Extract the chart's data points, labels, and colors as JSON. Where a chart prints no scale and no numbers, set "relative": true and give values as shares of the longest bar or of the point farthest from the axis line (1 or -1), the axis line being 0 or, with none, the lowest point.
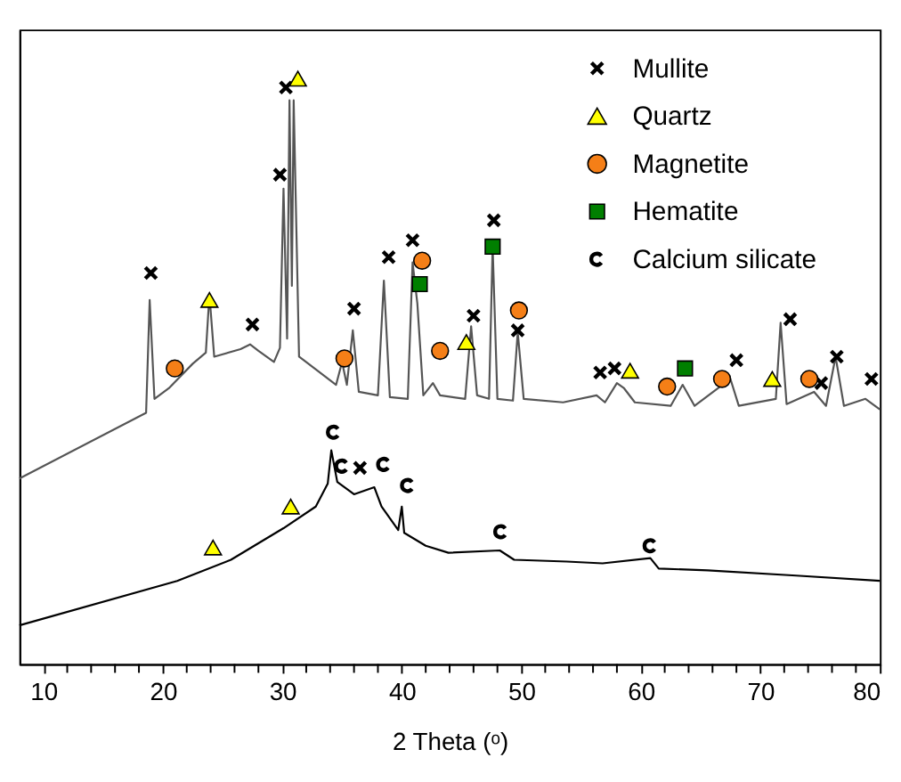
{
  "chart_data": {
    "type": "line",
    "relative": true,
    "xlabel": "2 Theta (ᵒ)",
    "xlim": [
      8,
      80
    ],
    "xticks": [
      10,
      {
        "value": 12,
        "label": null
      },
      {
        "value": 14,
        "label": null
      },
      {
        "value": 16,
        "label": null
      },
      {
        "value": 18,
        "label": null
      },
      20,
      {
        "value": 22,
        "label": null
      },
      {
        "value": 24,
        "label": null
      },
      {
        "value": 26,
        "label": null
      },
      {
        "value": 28,
        "label": null
      },
      30,
      {
        "value": 32,
        "label": null
      },
      {
        "value": 34,
        "label": null
      },
      {
        "value": 36,
        "label": null
      },
      {
        "value": 38,
        "label": null
      },
      40,
      {
        "value": 42,
        "label": null
      },
      {
        "value": 44,
        "label": null
      },
      {
        "value": 46,
        "label": null
      },
      {
        "value": 48,
        "label": null
      },
      50,
      {
        "value": 52,
        "label": null
      },
      {
        "value": 54,
        "label": null
      },
      {
        "value": 56,
        "label": null
      },
      {
        "value": 58,
        "label": null
      },
      60,
      {
        "value": 62,
        "label": null
      },
      {
        "value": 64,
        "label": null
      },
      {
        "value": 66,
        "label": null
      },
      {
        "value": 68,
        "label": null
      },
      70,
      {
        "value": 72,
        "label": null
      },
      {
        "value": 74,
        "label": null
      },
      {
        "value": 76,
        "label": null
      },
      {
        "value": 78,
        "label": null
      },
      80
    ],
    "grid": false,
    "legend": "top right",
    "series": [
      {
        "type": "line",
        "color": "#555555",
        "x": [
          8,
          18.6,
          18.9,
          19.3,
          20.5,
          22.5,
          23.6,
          23.9,
          24.3,
          26.5,
          27.3,
          28,
          29.3,
          29.8,
          30.1,
          30.4,
          30.6,
          30.8,
          30.95,
          31.4,
          32.5,
          34.5,
          35.0,
          35.4,
          35.9,
          36.4,
          38.0,
          38.5,
          39.0,
          40.5,
          40.9,
          41.3,
          41.8,
          42.6,
          43.2,
          45.3,
          45.8,
          46.3,
          47.3,
          47.6,
          48.0,
          49.3,
          49.7,
          50.2,
          53.5,
          56.3,
          57.0,
          58.0,
          58.6,
          59.5,
          62.5,
          63.5,
          64.5,
          67.5,
          68.2,
          71.3,
          71.7,
          72.2,
          74.5,
          75.5,
          76.3,
          77,
          78.8,
          80
        ],
        "values": [
          0.317,
          0.429,
          0.622,
          0.453,
          0.471,
          0.513,
          0.532,
          0.631,
          0.525,
          0.538,
          0.546,
          0.535,
          0.516,
          0.54,
          0.812,
          0.556,
          0.963,
          0.646,
          0.963,
          0.525,
          0.508,
          0.477,
          0.516,
          0.477,
          0.57,
          0.465,
          0.459,
          0.655,
          0.456,
          0.453,
          0.686,
          0.616,
          0.459,
          0.48,
          0.459,
          0.453,
          0.577,
          0.459,
          0.453,
          0.713,
          0.453,
          0.45,
          0.567,
          0.453,
          0.447,
          0.459,
          0.447,
          0.48,
          0.471,
          0.447,
          0.441,
          0.477,
          0.441,
          0.487,
          0.441,
          0.453,
          0.583,
          0.444,
          0.465,
          0.441,
          0.525,
          0.441,
          0.453,
          0.435
        ]
      },
      {
        "type": "line",
        "color": "#000000",
        "x": [
          8,
          21.2,
          25.7,
          30.1,
          32.8,
          33.8,
          34.1,
          34.6,
          36.0,
          37.7,
          38.3,
          39.7,
          40.0,
          40.2,
          42.0,
          43.9,
          48.2,
          49.4,
          53.8,
          56.8,
          60.8,
          61.5,
          65.6,
          73.0,
          80
        ],
        "values": [
          0.066,
          0.142,
          0.178,
          0.232,
          0.269,
          0.308,
          0.365,
          0.311,
          0.29,
          0.302,
          0.269,
          0.229,
          0.269,
          0.224,
          0.202,
          0.19,
          0.194,
          0.178,
          0.175,
          0.172,
          0.181,
          0.163,
          0.16,
          0.151,
          0.142
        ]
      },
      {
        "type": "scatter",
        "name": "Mullite",
        "color": "#000000",
        "marker": "cross",
        "x": [
          19.0,
          27.5,
          30.3,
          29.8,
          36.0,
          38.9,
          40.9,
          47.7,
          46.0,
          49.7,
          56.6,
          57.8,
          68.0,
          72.5,
          75.1,
          76.4,
          79.3,
          36.5
        ],
        "values": [
          0.668,
          0.58,
          0.985,
          0.836,
          0.607,
          0.695,
          0.724,
          0.758,
          0.595,
          0.57,
          0.498,
          0.505,
          0.519,
          0.589,
          0.48,
          0.525,
          0.487,
          0.335
        ]
      },
      {
        "type": "scatter",
        "name": "Quartz",
        "color": "#ffff00",
        "marker": "triangle",
        "x": [
          23.9,
          31.3,
          45.4,
          59.1,
          71.0,
          24.2,
          30.7
        ],
        "values": [
          0.622,
          1.0,
          0.55,
          0.501,
          0.487,
          0.199,
          0.269
        ]
      },
      {
        "type": "scatter",
        "name": "Magnetite",
        "color": "#f57f17",
        "marker": "circle",
        "x": [
          21.0,
          35.2,
          41.7,
          43.2,
          49.8,
          62.2,
          66.8,
          74.1
        ],
        "values": [
          0.505,
          0.522,
          0.689,
          0.535,
          0.604,
          0.474,
          0.487,
          0.487
        ]
      },
      {
        "type": "scatter",
        "name": "Hematite",
        "color": "#007f00",
        "marker": "square",
        "x": [
          41.5,
          47.6,
          63.7
        ],
        "values": [
          0.649,
          0.713,
          0.505
        ]
      },
      {
        "type": "scatter",
        "name": "Calcium silicate",
        "color": "#000000",
        "x": [
          34.3,
          35.0,
          38.5,
          40.5,
          48.3,
          60.8
        ],
        "values": [
          0.396,
          0.338,
          0.341,
          0.305,
          0.226,
          0.202
        ]
      }
    ]
  }
}
